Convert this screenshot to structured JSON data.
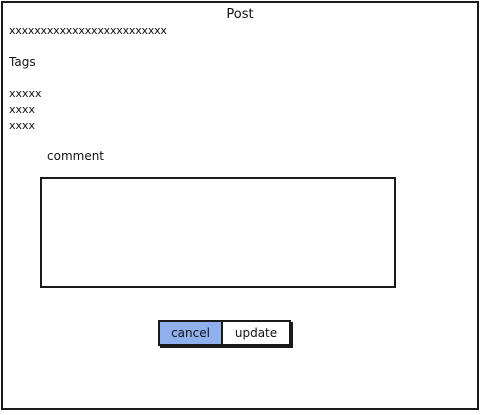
{
  "window": {
    "title": "Post"
  },
  "post": {
    "body": "xxxxxxxxxxxxxxxxxxxxxxxxx"
  },
  "tags": {
    "label": "Tags",
    "items": [
      "xxxxx",
      "xxxx",
      "xxxx"
    ]
  },
  "comment": {
    "label": "comment",
    "value": ""
  },
  "actions": {
    "cancel_label": "cancel",
    "update_label": "update"
  },
  "colors": {
    "cancel_button_fill": "#8fb0ec",
    "border": "#1a1a1a"
  }
}
